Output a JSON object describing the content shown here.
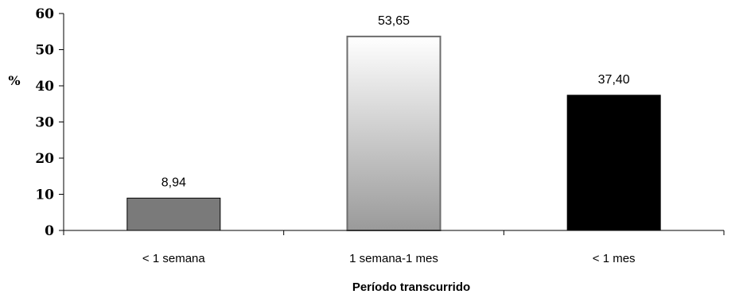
{
  "chart_data": {
    "type": "bar",
    "categories": [
      "< 1 semana",
      "1 semana-1 mes",
      "< 1 mes"
    ],
    "values": [
      8.94,
      53.65,
      37.4
    ],
    "data_labels": [
      "8,94",
      "53,65",
      "37,40"
    ],
    "xlabel": "Período transcurrido",
    "ylabel": "%",
    "ylim": [
      0,
      60
    ],
    "yticks": [
      "0",
      "10",
      "20",
      "30",
      "40",
      "50",
      "60"
    ],
    "grid": false,
    "bar_fills": [
      "#7a7a7a",
      "gradient-white-to-gray",
      "#000000"
    ],
    "bar_edge_colors": [
      "#000000",
      "#6d6d6d",
      "#000000"
    ]
  }
}
